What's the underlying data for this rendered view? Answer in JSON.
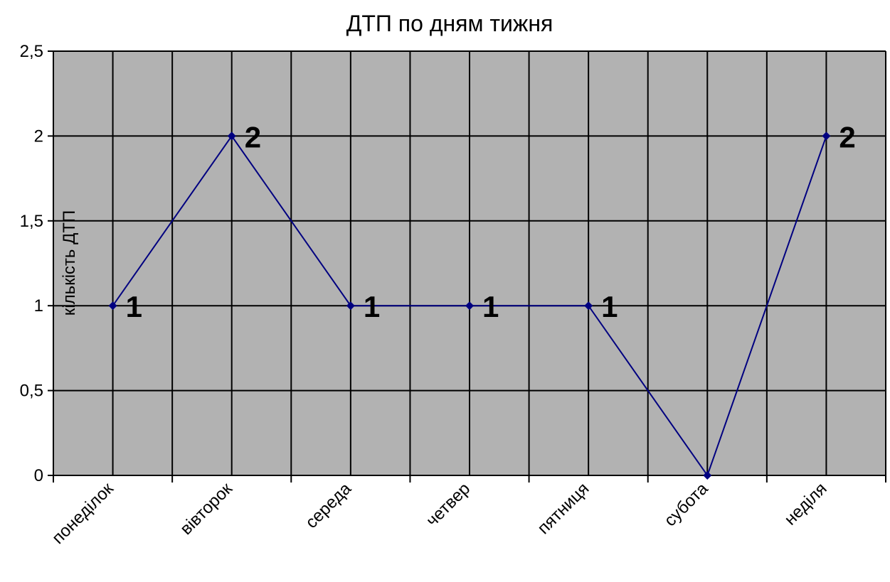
{
  "chart_data": {
    "type": "line",
    "title": "ДТП по дням тижня",
    "xlabel": "",
    "ylabel": "кількість ДТП",
    "categories": [
      "понеділок",
      "вівторок",
      "середа",
      "четвер",
      "пятниця",
      "субота",
      "неділя"
    ],
    "series": [
      {
        "values": [
          1,
          2,
          1,
          1,
          1,
          0,
          2
        ]
      }
    ],
    "data_labels": [
      "1",
      "2",
      "1",
      "1",
      "1",
      "",
      "2"
    ],
    "ylim": [
      0,
      2.5
    ],
    "yticks": [
      "0",
      "0,5",
      "1",
      "1,5",
      "2",
      "2,5"
    ],
    "grid": true,
    "legend": "none",
    "colors": {
      "plot_background": "#b2b2b2",
      "line": "#000080",
      "grid": "#000000"
    }
  }
}
